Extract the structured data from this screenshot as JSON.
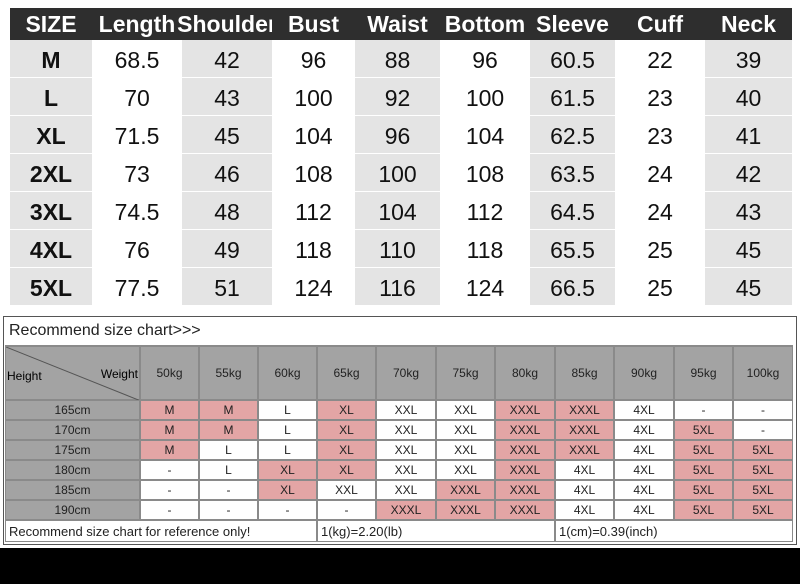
{
  "size_table": {
    "header": [
      "SIZE",
      "Length",
      "Shoulder",
      "Bust",
      "Waist",
      "Bottom",
      "Sleeve",
      "Cuff",
      "Neck"
    ],
    "rows": [
      [
        "M",
        68.5,
        42,
        96,
        88,
        96,
        60.5,
        22,
        39
      ],
      [
        "L",
        70,
        43,
        100,
        92,
        100,
        61.5,
        23,
        40
      ],
      [
        "XL",
        71.5,
        45,
        104,
        96,
        104,
        62.5,
        23,
        41
      ],
      [
        "2XL",
        73,
        46,
        108,
        100,
        108,
        63.5,
        24,
        42
      ],
      [
        "3XL",
        74.5,
        48,
        112,
        104,
        112,
        64.5,
        24,
        43
      ],
      [
        "4XL",
        76,
        49,
        118,
        110,
        118,
        65.5,
        25,
        45
      ],
      [
        "5XL",
        77.5,
        51,
        124,
        116,
        124,
        66.5,
        25,
        45
      ]
    ]
  },
  "recommend_chart": {
    "title": "Recommend size chart>>>",
    "height_label": "Height",
    "weight_label": "Weight",
    "weights": [
      "50kg",
      "55kg",
      "60kg",
      "65kg",
      "70kg",
      "75kg",
      "80kg",
      "85kg",
      "90kg",
      "95kg",
      "100kg"
    ],
    "rows": [
      {
        "height": "165cm",
        "sizes": [
          "M",
          "M",
          "L",
          "XL",
          "XXL",
          "XXL",
          "XXXL",
          "XXXL",
          "4XL",
          "-",
          "-"
        ],
        "colors": [
          "#e3a5a5",
          "#e3a5a5",
          "#ffffff",
          "#e3a5a5",
          "#ffffff",
          "#ffffff",
          "#e3a5a5",
          "#e3a5a5",
          "#ffffff",
          "#ffffff",
          "#ffffff"
        ]
      },
      {
        "height": "170cm",
        "sizes": [
          "M",
          "M",
          "L",
          "XL",
          "XXL",
          "XXL",
          "XXXL",
          "XXXL",
          "4XL",
          "5XL",
          "-"
        ],
        "colors": [
          "#e3a5a5",
          "#e3a5a5",
          "#ffffff",
          "#e3a5a5",
          "#ffffff",
          "#ffffff",
          "#e3a5a5",
          "#e3a5a5",
          "#ffffff",
          "#e3a5a5",
          "#ffffff"
        ]
      },
      {
        "height": "175cm",
        "sizes": [
          "M",
          "L",
          "L",
          "XL",
          "XXL",
          "XXL",
          "XXXL",
          "XXXL",
          "4XL",
          "5XL",
          "5XL"
        ],
        "colors": [
          "#e3a5a5",
          "#ffffff",
          "#ffffff",
          "#e3a5a5",
          "#ffffff",
          "#ffffff",
          "#e3a5a5",
          "#e3a5a5",
          "#ffffff",
          "#e3a5a5",
          "#e3a5a5"
        ]
      },
      {
        "height": "180cm",
        "sizes": [
          "-",
          "L",
          "XL",
          "XL",
          "XXL",
          "XXL",
          "XXXL",
          "4XL",
          "4XL",
          "5XL",
          "5XL"
        ],
        "colors": [
          "#ffffff",
          "#ffffff",
          "#e3a5a5",
          "#e3a5a5",
          "#ffffff",
          "#ffffff",
          "#e3a5a5",
          "#ffffff",
          "#ffffff",
          "#e3a5a5",
          "#e3a5a5"
        ]
      },
      {
        "height": "185cm",
        "sizes": [
          "-",
          "-",
          "XL",
          "XXL",
          "XXL",
          "XXXL",
          "XXXL",
          "4XL",
          "4XL",
          "5XL",
          "5XL"
        ],
        "colors": [
          "#ffffff",
          "#ffffff",
          "#e3a5a5",
          "#ffffff",
          "#ffffff",
          "#e3a5a5",
          "#e3a5a5",
          "#ffffff",
          "#ffffff",
          "#e3a5a5",
          "#e3a5a5"
        ]
      },
      {
        "height": "190cm",
        "sizes": [
          "-",
          "-",
          "-",
          "-",
          "XXXL",
          "XXXL",
          "XXXL",
          "4XL",
          "4XL",
          "5XL",
          "5XL"
        ],
        "colors": [
          "#ffffff",
          "#ffffff",
          "#ffffff",
          "#ffffff",
          "#e3a5a5",
          "#e3a5a5",
          "#e3a5a5",
          "#ffffff",
          "#ffffff",
          "#e3a5a5",
          "#e3a5a5"
        ]
      }
    ],
    "footer": [
      "Recommend size chart for reference only!",
      "1(kg)=2.20(lb)",
      "1(cm)=0.39(inch)"
    ]
  }
}
